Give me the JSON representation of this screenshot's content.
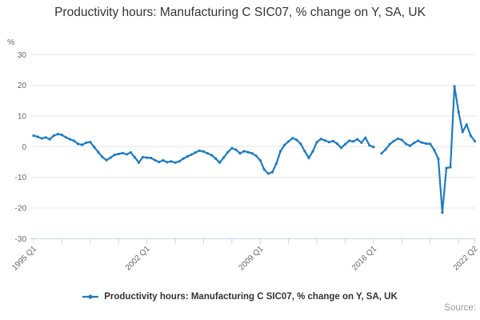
{
  "title": "Productivity hours: Manufacturing C SIC07, % change on Y, SA, UK",
  "legend": {
    "label": "Productivity hours: Manufacturing C SIC07, % change on Y, SA, UK"
  },
  "source": {
    "label": "Source:"
  },
  "y_axis": {
    "unit_label": "%",
    "tick_labels": [
      "30",
      "20",
      "10",
      "0",
      "-10",
      "-20",
      "-30"
    ],
    "tick_values": [
      30,
      20,
      10,
      0,
      -10,
      -20,
      -30
    ]
  },
  "x_axis": {
    "labels": [
      "1995 Q1",
      "2002 Q1",
      "2009 Q1",
      "2016 Q1",
      "2022 Q2"
    ]
  },
  "colors": {
    "series": "#1e7cc2",
    "grid": "#e6e6e6",
    "axis": "#c9d4e4",
    "tick_label": "#666666",
    "unit_label": "#666666",
    "title": "#333333",
    "legend_text": "#333333",
    "source_text": "#999999",
    "background": "#ffffff"
  },
  "chart_data": {
    "type": "line",
    "title": "Productivity hours: Manufacturing C SIC07, % change on Y, SA, UK",
    "xlabel": "",
    "ylabel": "%",
    "ylim": [
      -30,
      30
    ],
    "grid": "horizontal-only",
    "legend_position": "bottom-center",
    "x_start": "1995 Q1",
    "x_end": "2022 Q2",
    "frequency": "quarterly",
    "x_tick_labels": [
      "1995 Q1",
      "2002 Q1",
      "2009 Q1",
      "2016 Q1",
      "2022 Q2"
    ],
    "gap_quarter": "2016 Q2",
    "series": [
      {
        "name": "Productivity hours: Manufacturing C SIC07, % change on Y, SA, UK",
        "values": [
          3.6,
          3.2,
          2.7,
          3.0,
          2.4,
          3.6,
          4.1,
          3.8,
          3.0,
          2.4,
          1.9,
          0.9,
          0.6,
          1.3,
          1.5,
          -0.2,
          -1.8,
          -3.4,
          -4.4,
          -3.6,
          -2.7,
          -2.4,
          -2.1,
          -2.5,
          -1.9,
          -3.5,
          -5.2,
          -3.4,
          -3.6,
          -3.7,
          -4.4,
          -5.0,
          -4.5,
          -5.1,
          -4.8,
          -5.2,
          -4.8,
          -3.9,
          -3.2,
          -2.6,
          -1.9,
          -1.3,
          -1.6,
          -2.2,
          -2.8,
          -3.9,
          -5.2,
          -3.5,
          -1.8,
          -0.5,
          -1.0,
          -2.2,
          -1.5,
          -1.8,
          -2.2,
          -3.0,
          -4.5,
          -7.5,
          -8.8,
          -8.3,
          -5.5,
          -1.5,
          0.5,
          1.7,
          2.8,
          2.2,
          0.9,
          -1.5,
          -3.7,
          -1.5,
          1.5,
          2.5,
          2.0,
          1.5,
          1.8,
          1.0,
          -0.4,
          0.8,
          1.9,
          1.7,
          2.4,
          1.3,
          2.9,
          0.4,
          -0.1,
          null,
          -2.2,
          -0.9,
          0.8,
          1.8,
          2.6,
          2.2,
          0.9,
          0.3,
          1.2,
          1.9,
          1.3,
          1.0,
          0.9,
          -1.1,
          -4.0,
          -21.5,
          -7.0,
          -6.7,
          19.7,
          11.3,
          4.8,
          7.2,
          3.6,
          1.8
        ]
      }
    ]
  }
}
